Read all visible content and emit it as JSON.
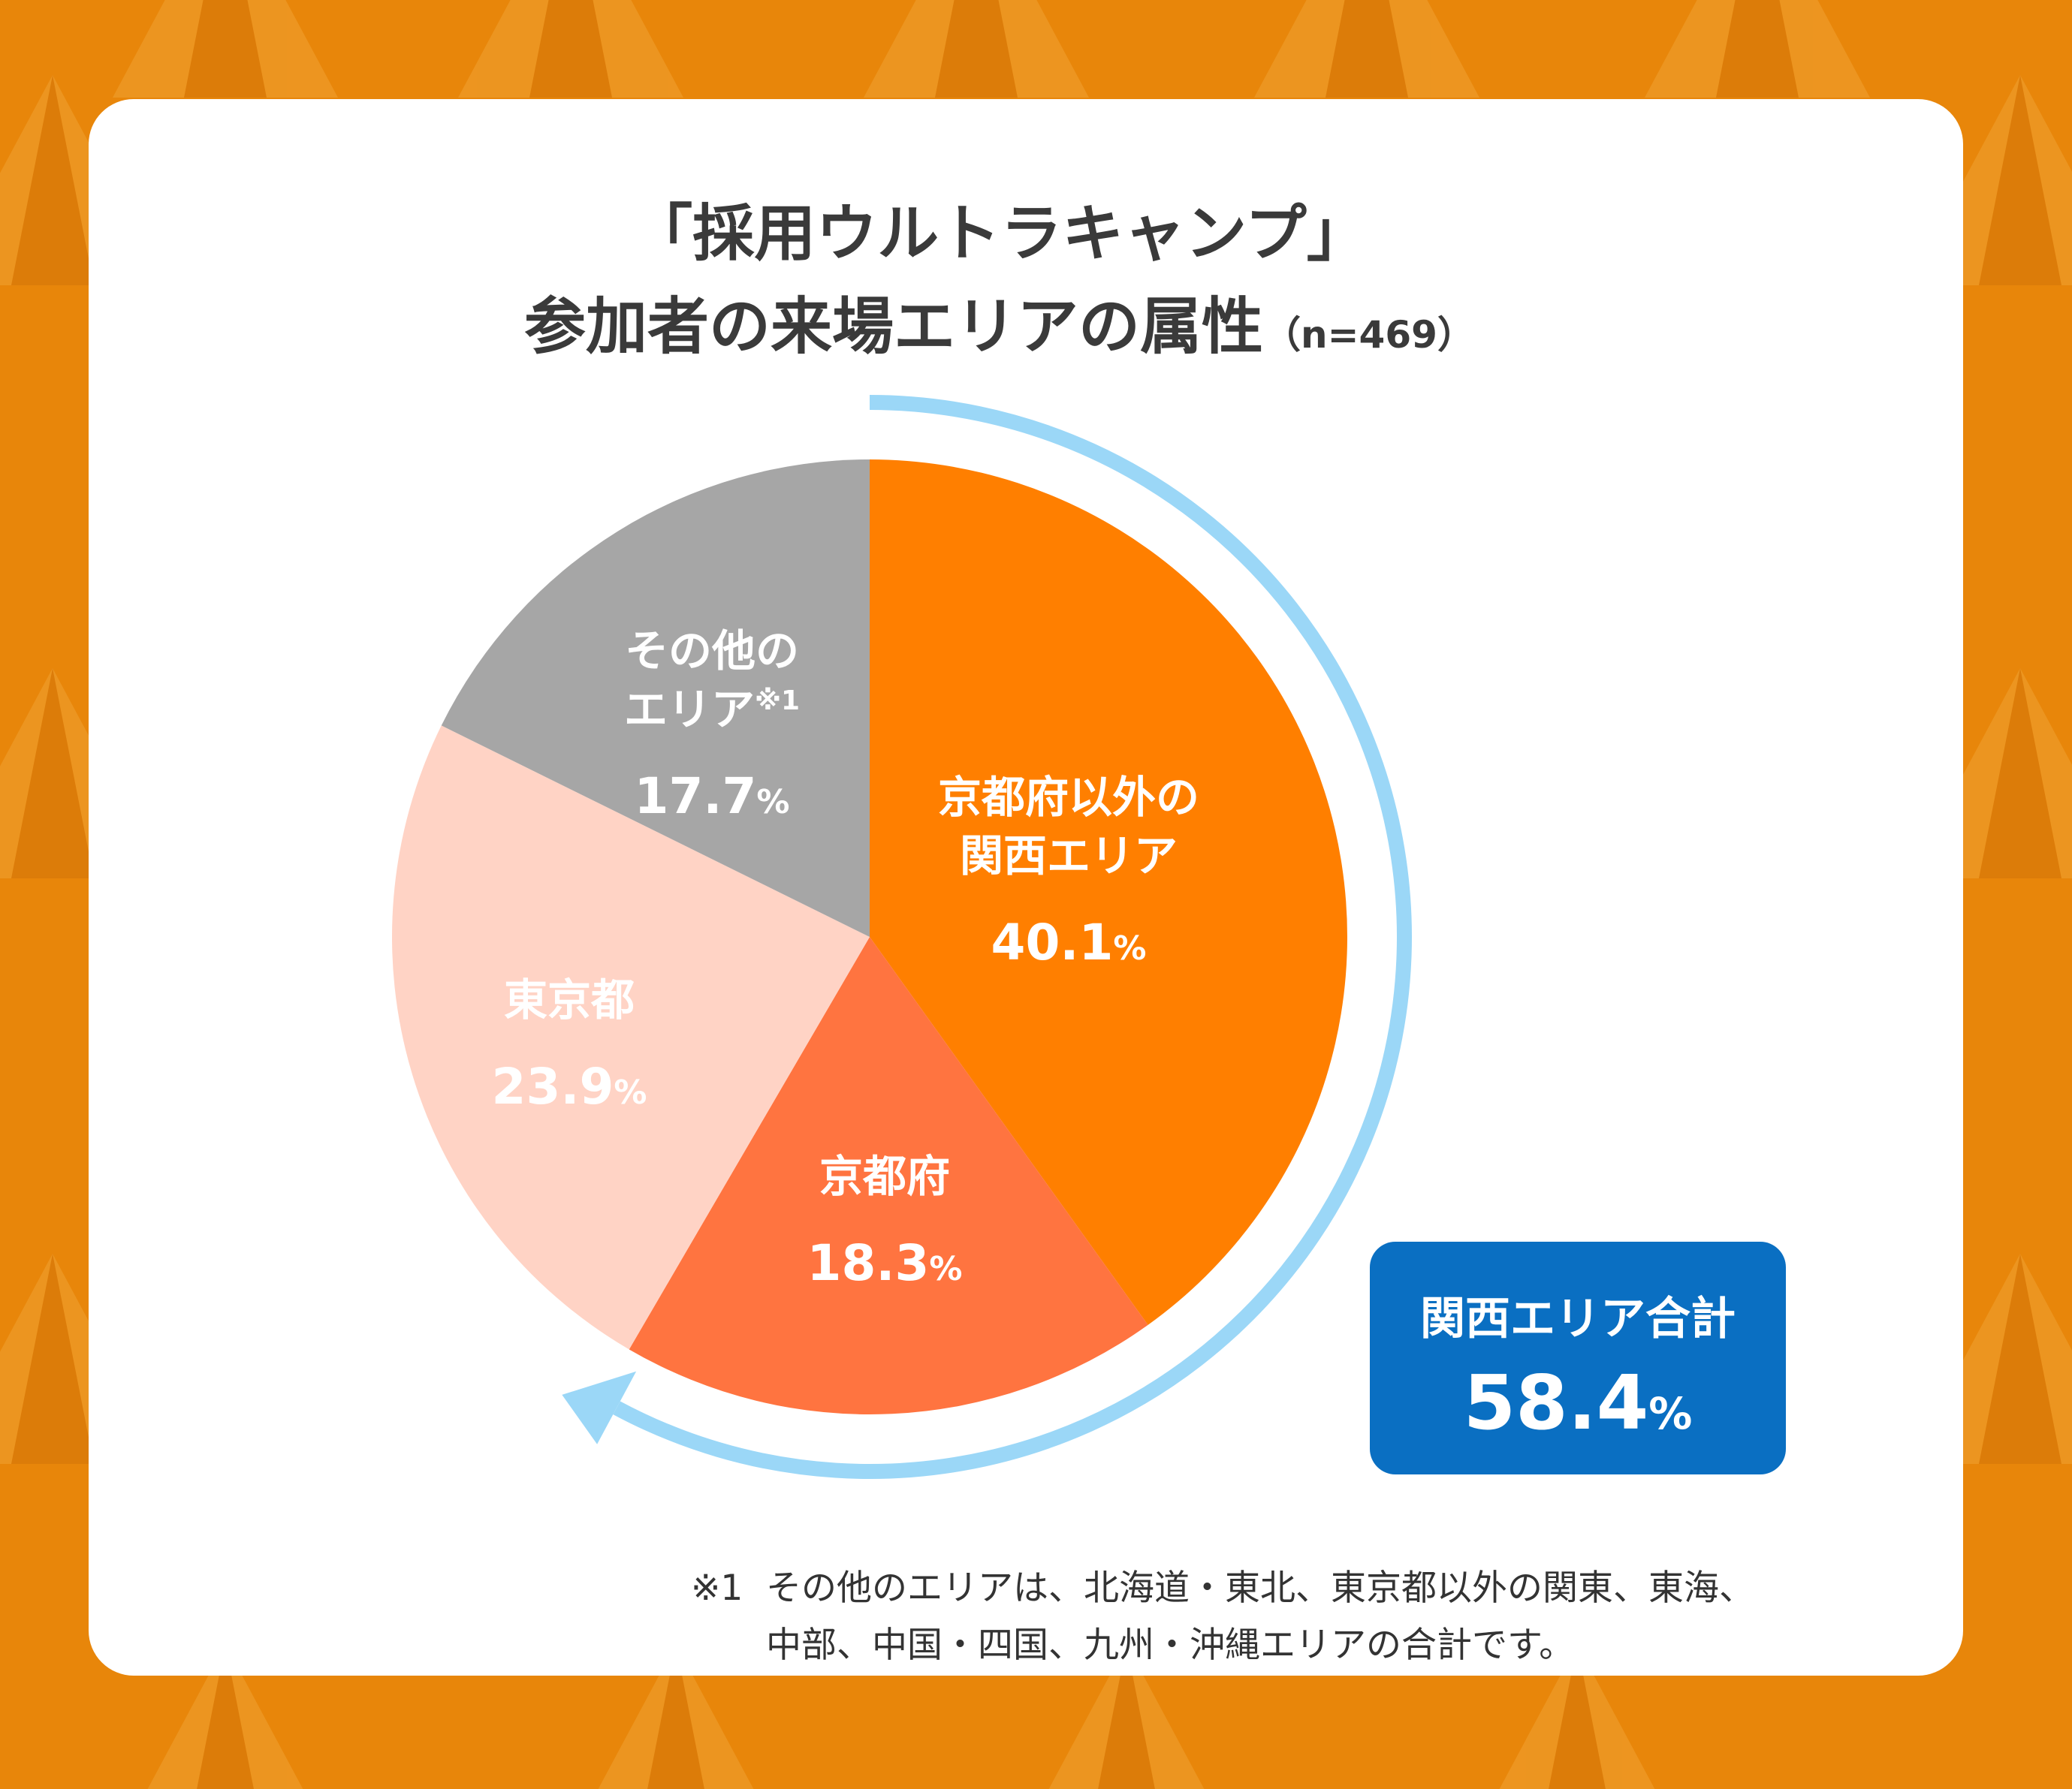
{
  "title": {
    "line1": "「採用ウルトラキャンプ」",
    "line2": "参加者の来場エリアの属性",
    "sample": "（n=469）"
  },
  "colors": {
    "background": "#E8860A",
    "card": "#FFFFFF",
    "arrow": "#9BD7F7",
    "total_box": "#0A6FC2"
  },
  "chart_data": {
    "type": "pie",
    "start": "top",
    "direction": "clockwise",
    "slices": [
      {
        "label_lines": [
          "京都府以外の",
          "関西エリア"
        ],
        "sup": "",
        "value": 40.1,
        "value_text": "40.1",
        "color": "#FF7F00"
      },
      {
        "label_lines": [
          "京都府"
        ],
        "sup": "",
        "value": 18.3,
        "value_text": "18.3",
        "color": "#FF7440"
      },
      {
        "label_lines": [
          "東京都"
        ],
        "sup": "",
        "value": 23.9,
        "value_text": "23.9",
        "color": "#FFD3C5"
      },
      {
        "label_lines": [
          "その他の",
          "エリア"
        ],
        "sup": "※1",
        "value": 17.7,
        "value_text": "17.7",
        "color": "#A6A6A6"
      }
    ],
    "unit": "%"
  },
  "total": {
    "label": "関西エリア合計",
    "value": "58.4",
    "unit": "%"
  },
  "footnote": {
    "mark": "※1",
    "line1": "その他のエリアは、北海道・東北、東京都以外の関東、東海、",
    "line2": "中部、中国・四国、九州・沖縄エリアの合計です。"
  }
}
